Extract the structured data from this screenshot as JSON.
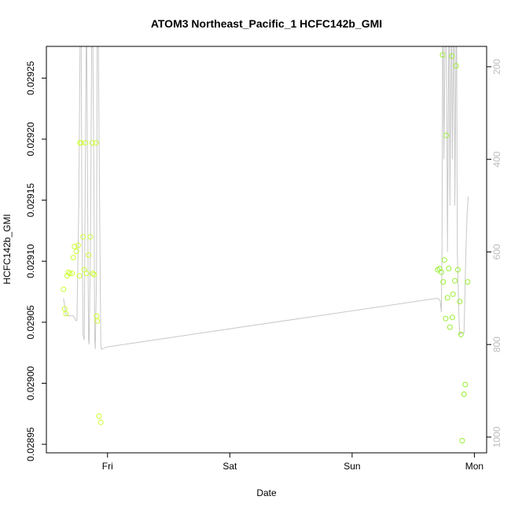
{
  "chart_data": {
    "type": "scatter",
    "title": "ATOM3 Northeast_Pacific_1 HCFC142b_GMI",
    "xlabel": "Date",
    "ylabel": "HCFC142b_GMI",
    "x_ticks": [
      {
        "label": "Fri",
        "value": 1.0
      },
      {
        "label": "Sat",
        "value": 2.0
      },
      {
        "label": "Sun",
        "value": 3.0
      },
      {
        "label": "Mon",
        "value": 4.0
      }
    ],
    "xlim": [
      0.5,
      4.1
    ],
    "y_ticks": [
      0.02895,
      0.029,
      0.02905,
      0.0291,
      0.02915,
      0.0292,
      0.02925
    ],
    "y_tick_labels": [
      "0.02895",
      "0.02900",
      "0.02905",
      "0.02910",
      "0.02915",
      "0.02920",
      "0.02925"
    ],
    "ylim": [
      0.028943,
      0.029276
    ],
    "y2_label": "",
    "y2_ticks": [
      200,
      400,
      600,
      800,
      1000
    ],
    "y2lim": [
      1034,
      156
    ],
    "grid": false,
    "series": [
      {
        "color": "#ccff33",
        "points": [
          [
            0.64,
            0.029077
          ],
          [
            0.65,
            0.029061
          ],
          [
            0.66,
            0.029057
          ],
          [
            0.67,
            0.029088
          ],
          [
            0.68,
            0.029091
          ],
          [
            0.69,
            0.02909
          ],
          [
            0.71,
            0.02909
          ],
          [
            0.72,
            0.029103
          ],
          [
            0.73,
            0.029112
          ],
          [
            0.745,
            0.029108
          ],
          [
            0.76,
            0.029113
          ],
          [
            0.77,
            0.029088
          ],
          [
            0.775,
            0.029197
          ],
          [
            0.785,
            0.029197
          ],
          [
            0.8,
            0.02912
          ],
          [
            0.81,
            0.029093
          ],
          [
            0.82,
            0.029197
          ],
          [
            0.83,
            0.02909
          ],
          [
            0.845,
            0.029105
          ],
          [
            0.86,
            0.02912
          ],
          [
            0.875,
            0.029197
          ],
          [
            0.88,
            0.02909
          ],
          [
            0.89,
            0.029089
          ],
          [
            0.905,
            0.029197
          ],
          [
            0.91,
            0.029055
          ],
          [
            0.915,
            0.029051
          ],
          [
            0.93,
            0.028973
          ],
          [
            0.945,
            0.028968
          ]
        ]
      },
      {
        "color": "#99ee33",
        "points": [
          [
            3.7,
            0.029093
          ],
          [
            3.715,
            0.029094
          ],
          [
            3.73,
            0.029091
          ],
          [
            3.74,
            0.029269
          ],
          [
            3.745,
            0.029083
          ],
          [
            3.755,
            0.029101
          ],
          [
            3.765,
            0.029053
          ],
          [
            3.77,
            0.029203
          ],
          [
            3.78,
            0.02907
          ],
          [
            3.79,
            0.029094
          ],
          [
            3.8,
            0.029046
          ],
          [
            3.815,
            0.029268
          ],
          [
            3.82,
            0.029054
          ],
          [
            3.825,
            0.029073
          ],
          [
            3.84,
            0.029084
          ],
          [
            3.85,
            0.02926
          ],
          [
            3.865,
            0.029093
          ],
          [
            3.88,
            0.029067
          ],
          [
            3.89,
            0.02904
          ],
          [
            3.9,
            0.028953
          ],
          [
            3.915,
            0.028991
          ],
          [
            3.925,
            0.028999
          ],
          [
            3.945,
            0.029083
          ]
        ]
      }
    ],
    "pressure_line": {
      "color": "#c8c8c8",
      "x": [
        0.64,
        0.66,
        0.68,
        0.72,
        0.74,
        0.75,
        0.765,
        0.775,
        0.785,
        0.79,
        0.8,
        0.81,
        0.815,
        0.825,
        0.83,
        0.84,
        0.845,
        0.85,
        0.86,
        0.87,
        0.88,
        0.89,
        0.895,
        0.9,
        0.91,
        0.915,
        0.925,
        0.935,
        0.945,
        0.95,
        1.0,
        3.7,
        3.72,
        3.73,
        3.735,
        3.74,
        3.745,
        3.75,
        3.76,
        3.77,
        3.775,
        3.78,
        3.79,
        3.795,
        3.8,
        3.81,
        3.815,
        3.82,
        3.83,
        3.835,
        3.84,
        3.85,
        3.855,
        3.86,
        3.87,
        3.875,
        3.88,
        3.89,
        3.9,
        3.91,
        3.915,
        3.93,
        3.94,
        3.95
      ],
      "y": [
        700,
        735,
        738,
        738,
        748,
        748,
        500,
        150,
        150,
        500,
        780,
        790,
        560,
        150,
        150,
        600,
        790,
        800,
        600,
        150,
        150,
        500,
        790,
        810,
        650,
        150,
        150,
        500,
        800,
        810,
        805,
        700,
        705,
        730,
        600,
        150,
        150,
        400,
        150,
        150,
        300,
        600,
        150,
        150,
        500,
        150,
        150,
        400,
        150,
        150,
        500,
        150,
        150,
        600,
        700,
        750,
        778,
        775,
        775,
        775,
        775,
        600,
        520,
        480
      ]
    }
  }
}
